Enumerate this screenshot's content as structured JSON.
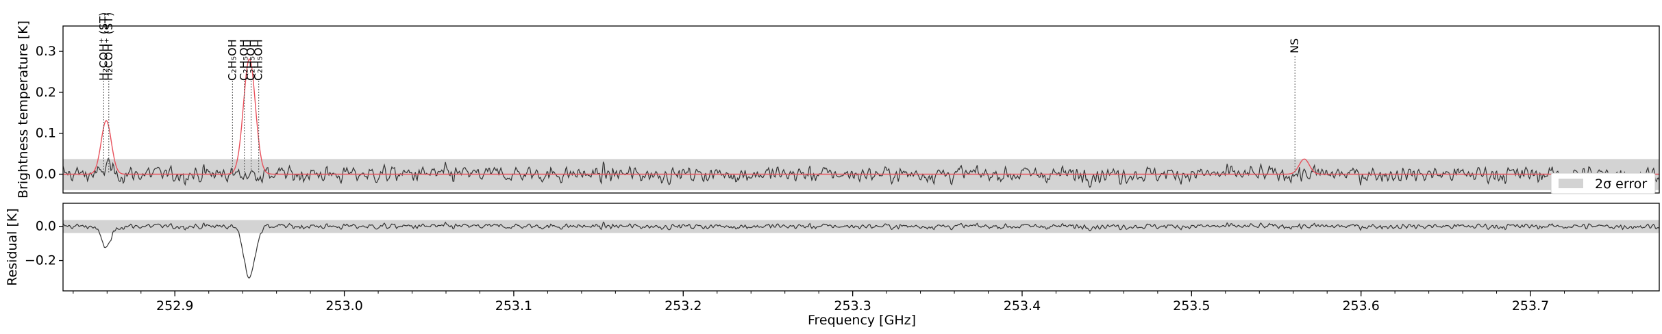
{
  "chart_data": {
    "type": "line",
    "xlabel": "Frequency [GHz]",
    "xlim": [
      252.834,
      253.776
    ],
    "xticks": [
      252.9,
      253.0,
      253.1,
      253.2,
      253.3,
      253.4,
      253.5,
      253.6,
      253.7
    ],
    "xtick_labels": [
      "252.9",
      "253.0",
      "253.1",
      "253.2",
      "253.3",
      "253.4",
      "253.5",
      "253.6",
      "253.7"
    ],
    "top_panel": {
      "ylabel": "Brightness temperature [K]",
      "ylim": [
        -0.046,
        0.362
      ],
      "yticks": [
        0.0,
        0.1,
        0.2,
        0.3
      ],
      "ytick_labels": [
        "0.0",
        "0.1",
        "0.2",
        "0.3"
      ],
      "error_band": [
        -0.039,
        0.037
      ],
      "legend": {
        "label": "2σ error",
        "placement": "lower-right"
      },
      "model_peaks": [
        {
          "freq": 252.8595,
          "amplitude": 0.131,
          "width_ghz": 0.003
        },
        {
          "freq": 252.944,
          "amplitude": 0.282,
          "width_ghz": 0.0035
        },
        {
          "freq": 253.5665,
          "amplitude": 0.037,
          "width_ghz": 0.003
        }
      ],
      "observed_noise_rms": 0.018,
      "line_labels": [
        {
          "freq": 252.858,
          "text": "H₂COH⁺ (ST)"
        },
        {
          "freq": 252.861,
          "text": "H₂COH⁺ (ST)"
        },
        {
          "freq": 252.934,
          "text": "C₂H₅OH"
        },
        {
          "freq": 252.941,
          "text": "C₂H₅OH"
        },
        {
          "freq": 252.945,
          "text": "C₂H₅OH"
        },
        {
          "freq": 252.9495,
          "text": "C₂H₅OH"
        },
        {
          "freq": 253.561,
          "text": "NS"
        }
      ]
    },
    "bottom_panel": {
      "ylabel": "Residual [K]",
      "ylim": [
        -0.378,
        0.135
      ],
      "yticks": [
        0.0,
        -0.2
      ],
      "ytick_labels": [
        "0.0",
        "−0.2"
      ],
      "error_band": [
        -0.039,
        0.037
      ],
      "residual_dips": [
        {
          "freq": 252.8595,
          "depth": -0.12,
          "width_ghz": 0.003
        },
        {
          "freq": 252.944,
          "depth": -0.3,
          "width_ghz": 0.0032
        }
      ]
    },
    "colors": {
      "model": "#e8505b",
      "observed": "#333333",
      "band": "#d3d3d3"
    }
  }
}
